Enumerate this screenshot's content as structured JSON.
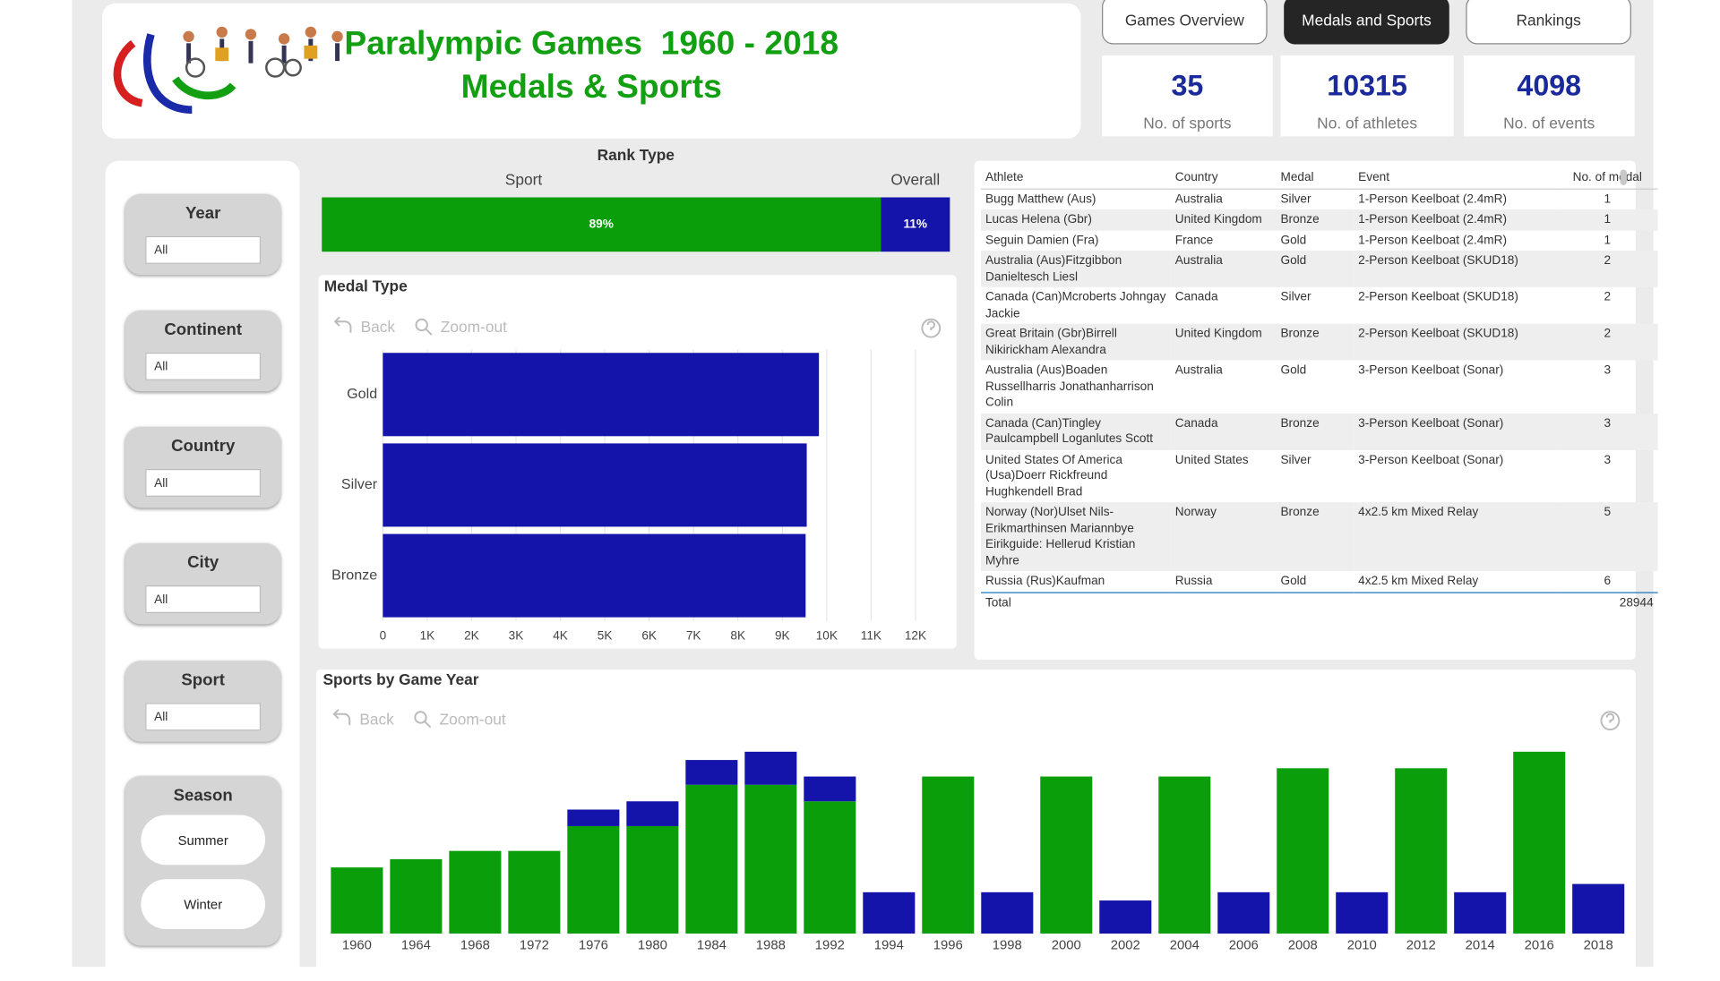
{
  "header": {
    "title": [
      "Paralympic Games  1960 - 2018",
      "Medals & Sports"
    ]
  },
  "nav": [
    "Games Overview",
    "Medals and Sports",
    "Rankings"
  ],
  "kpis": [
    {
      "value": 35,
      "label": "No. of sports"
    },
    {
      "value": 10315,
      "label": "No. of athletes"
    },
    {
      "value": 4098,
      "label": "No. of events"
    }
  ],
  "filters": [
    {
      "label": "Year",
      "value": "All"
    },
    {
      "label": "Continent",
      "value": "All"
    },
    {
      "label": "Country",
      "value": "All"
    },
    {
      "label": "City",
      "value": "All"
    },
    {
      "label": "Sport",
      "value": "All"
    }
  ],
  "season": {
    "label": "Season",
    "options": [
      "Summer",
      "Winter"
    ]
  },
  "table": {
    "columns": [
      "Athlete",
      "Country",
      "Medal",
      "Event",
      "No. of medal"
    ],
    "rows": [
      [
        "Bugg Matthew (Aus)",
        "Australia",
        "Silver",
        "1-Person Keelboat (2.4mR)",
        1
      ],
      [
        "Lucas Helena (Gbr)",
        "United Kingdom",
        "Bronze",
        "1-Person Keelboat (2.4mR)",
        1
      ],
      [
        "Seguin Damien (Fra)",
        "France",
        "Gold",
        "1-Person Keelboat (2.4mR)",
        1
      ],
      [
        "Australia (Aus)Fitzgibbon Danieltesch Liesl",
        "Australia",
        "Gold",
        "2-Person Keelboat (SKUD18)",
        2
      ],
      [
        "Canada (Can)Mcroberts Johngay Jackie",
        "Canada",
        "Silver",
        "2-Person Keelboat (SKUD18)",
        2
      ],
      [
        "Great Britain (Gbr)Birrell Nikirickham Alexandra",
        "United Kingdom",
        "Bronze",
        "2-Person Keelboat (SKUD18)",
        2
      ],
      [
        "Australia (Aus)Boaden Russellharris Jonathanharrison Colin",
        "Australia",
        "Gold",
        "3-Person Keelboat (Sonar)",
        3
      ],
      [
        "Canada (Can)Tingley Paulcampbell Loganlutes Scott",
        "Canada",
        "Bronze",
        "3-Person Keelboat (Sonar)",
        3
      ],
      [
        "United States Of America (Usa)Doerr Rickfreund Hughkendell Brad",
        "United States",
        "Silver",
        "3-Person Keelboat (Sonar)",
        3
      ],
      [
        "Norway (Nor)Ulset Nils-Erikmarthinsen Mariannbye Eirikguide: Hellerud Kristian Myhre",
        "Norway",
        "Bronze",
        "4x2.5 km Mixed Relay",
        5
      ],
      [
        "Russia (Rus)Kaufman",
        "Russia",
        "Gold",
        "4x2.5 km Mixed Relay",
        6
      ]
    ],
    "total": {
      "label": "Total",
      "value": 28944
    }
  },
  "chart_data": [
    {
      "type": "bar",
      "title": "Rank Type",
      "stacked": true,
      "horizontal": true,
      "series": [
        {
          "name": "Sport",
          "color": "#0b9e0b",
          "values": [
            89
          ],
          "value_labels": [
            "89%"
          ]
        },
        {
          "name": "Overall",
          "color": "#1414aa",
          "values": [
            11
          ],
          "value_labels": [
            "11%"
          ]
        }
      ]
    },
    {
      "type": "bar",
      "title": "Medal Type",
      "horizontal": true,
      "controls": [
        "Back",
        "Zoom-out"
      ],
      "categories": [
        "Gold",
        "Silver",
        "Bronze"
      ],
      "values": [
        9825,
        9550,
        9525
      ],
      "color": "#1414aa",
      "xlim": [
        0,
        12500
      ],
      "xticks": [
        0,
        {
          "value": 1000,
          "label": "1K"
        },
        {
          "value": 2000,
          "label": "2K"
        },
        {
          "value": 3000,
          "label": "3K"
        },
        {
          "value": 4000,
          "label": "4K"
        },
        {
          "value": 5000,
          "label": "5K"
        },
        {
          "value": 6000,
          "label": "6K"
        },
        {
          "value": 7000,
          "label": "7K"
        },
        {
          "value": 8000,
          "label": "8K"
        },
        {
          "value": 9000,
          "label": "9K"
        },
        {
          "value": 10000,
          "label": "10K"
        },
        {
          "value": 11000,
          "label": "11K"
        },
        {
          "value": 12000,
          "label": "12K"
        }
      ],
      "grid": true
    },
    {
      "type": "bar",
      "title": "Sports by Game Year",
      "stacked": true,
      "controls": [
        "Back",
        "Zoom-out"
      ],
      "categories": [
        "1960",
        "1964",
        "1968",
        "1972",
        "1976",
        "1980",
        "1984",
        "1988",
        "1992",
        "1994",
        "1996",
        "1998",
        "2000",
        "2002",
        "2004",
        "2006",
        "2008",
        "2010",
        "2012",
        "2014",
        "2016",
        "2018"
      ],
      "series": [
        {
          "color": "#0b9e0b",
          "values": [
            8,
            9,
            10,
            10,
            13,
            13,
            18,
            18,
            16,
            null,
            19,
            null,
            19,
            null,
            19,
            null,
            20,
            null,
            20,
            null,
            22,
            null
          ]
        },
        {
          "color": "#1414aa",
          "values": [
            null,
            null,
            null,
            null,
            2,
            3,
            3,
            4,
            3,
            5,
            null,
            5,
            null,
            4,
            null,
            5,
            null,
            5,
            null,
            5,
            null,
            6
          ]
        }
      ]
    }
  ]
}
